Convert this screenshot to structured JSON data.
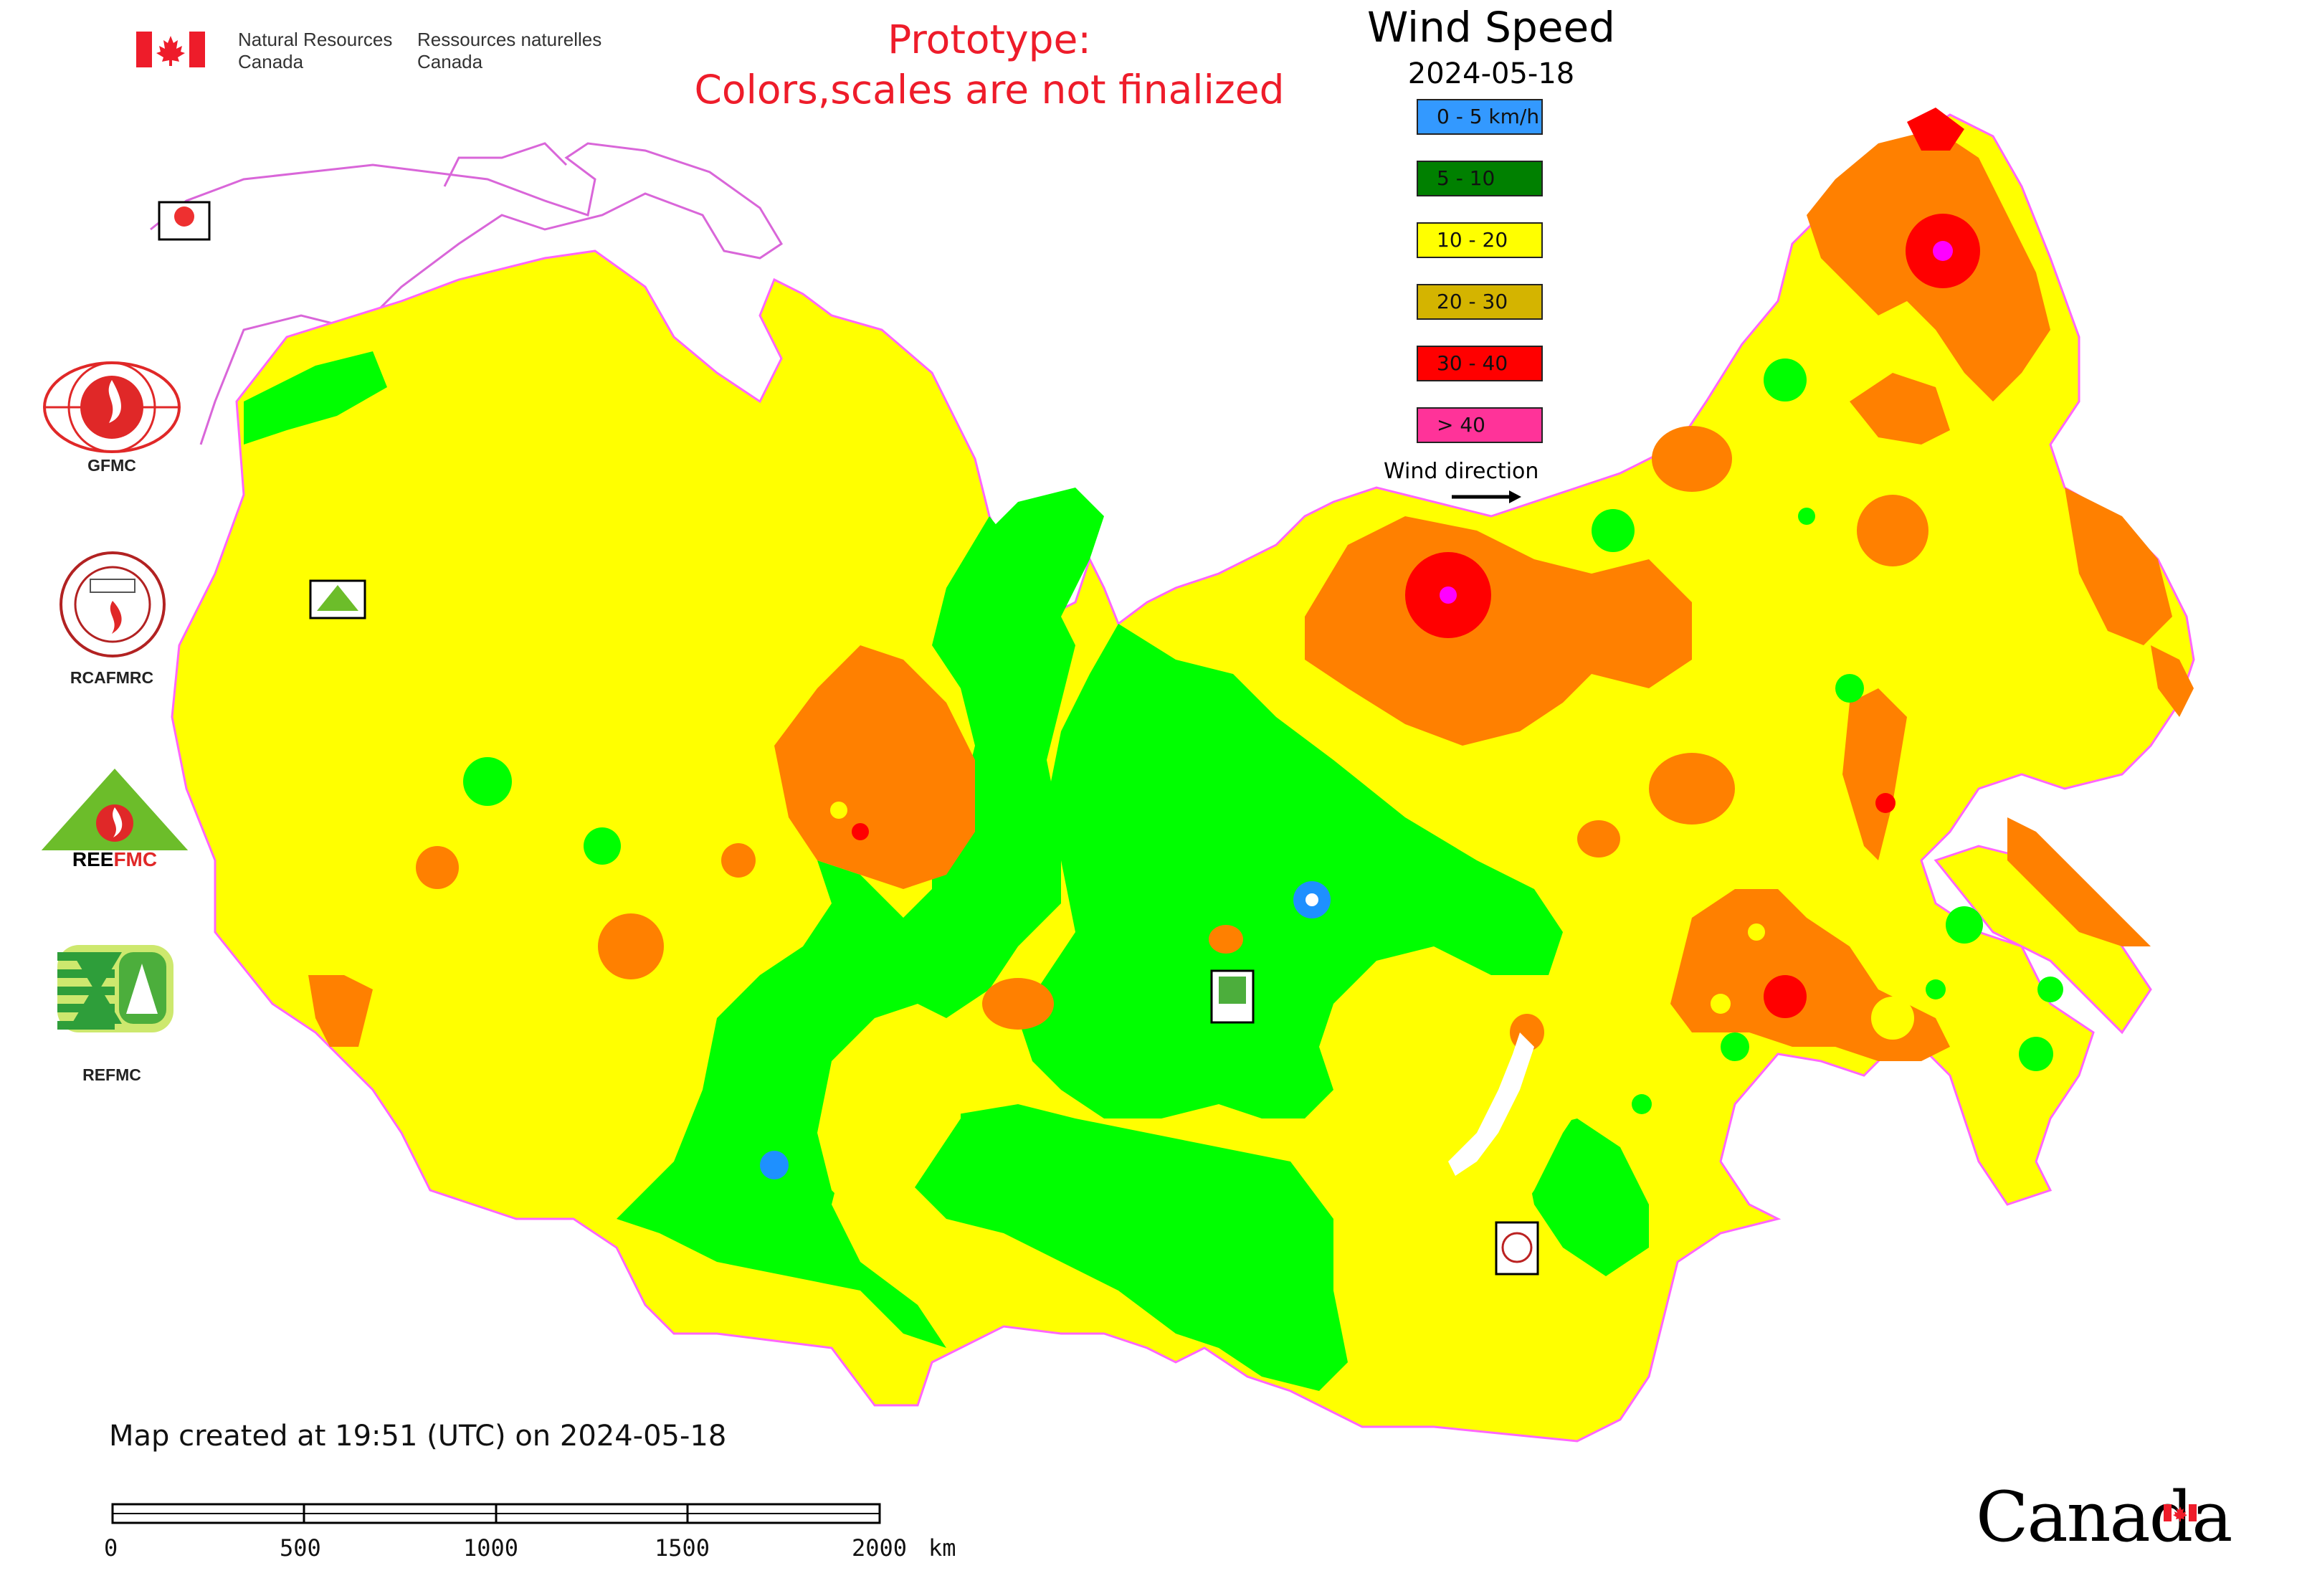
{
  "header": {
    "org_en_line1": "Natural Resources",
    "org_en_line2": "Canada",
    "org_fr_line1": "Ressources naturelles",
    "org_fr_line2": "Canada",
    "notice_line1": "Prototype:",
    "notice_line2": "Colors,scales are not finalized",
    "title": "Wind Speed",
    "date": "2024-05-18"
  },
  "legend": {
    "items": [
      {
        "label": "0 - 5 km/h",
        "color": "#3399ff"
      },
      {
        "label": "5 - 10",
        "color": "#008000"
      },
      {
        "label": "10 - 20",
        "color": "#ffff00"
      },
      {
        "label": "20 - 30",
        "color": "#d4b400"
      },
      {
        "label": "30 - 40",
        "color": "#ff0000"
      },
      {
        "label": "> 40",
        "color": "#ff3399"
      }
    ],
    "wind_direction_label": "Wind direction"
  },
  "partners": [
    {
      "label": "GFMC",
      "icon": "gfmc-logo-icon"
    },
    {
      "label": "RCAFMRC",
      "icon": "rcafmrc-logo-icon"
    },
    {
      "label": "",
      "icon": "reefmc-logo-icon",
      "wordmark": "REEFMC"
    },
    {
      "label": "REFMC",
      "icon": "refmc-logo-icon"
    }
  ],
  "map": {
    "colors": {
      "yellow": "#ffff00",
      "green": "#00ff00",
      "orange": "#ff8000",
      "red": "#ff0000",
      "magenta": "#ff00ff",
      "blue": "#1e90ff",
      "outline": "#ff66ff"
    }
  },
  "footer": {
    "created": "Map created at 19:51 (UTC) on 2024-05-18",
    "scale_ticks": [
      "0",
      "500",
      "1000",
      "1500",
      "2000"
    ],
    "scale_unit": "km",
    "wordmark": "Canada"
  }
}
